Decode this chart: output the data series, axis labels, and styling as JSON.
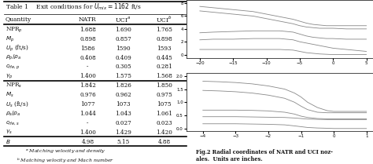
{
  "table_title": "Table 1    Exit conditions for $U_{mix} = 1162$ ft/s",
  "col_headers": [
    "Quantity",
    "NATR",
    "UCI$^a$",
    "UCI$^b$"
  ],
  "rows": [
    [
      "NPR$_p$",
      "1.688",
      "1.690",
      "1.765"
    ],
    [
      "$M_p$",
      "0.898",
      "0.857",
      "0.898"
    ],
    [
      "$U_p$ (ft/s)",
      "1586",
      "1590",
      "1593"
    ],
    [
      "$\\rho_p/\\rho_a$",
      "0.408",
      "0.409",
      "0.445"
    ],
    [
      "$c_{He,p}$",
      "-",
      "0.305",
      "0.281"
    ],
    [
      "$\\gamma_p$",
      "1.400",
      "1.575",
      "1.568"
    ],
    [
      "NPR$_s$",
      "1.842",
      "1.826",
      "1.850"
    ],
    [
      "$M_s$",
      "0.976",
      "0.962",
      "0.975"
    ],
    [
      "$U_s$ (ft/s)",
      "1077",
      "1073",
      "1075"
    ],
    [
      "$\\rho_s/\\rho_a$",
      "1.044",
      "1.043",
      "1.061"
    ],
    [
      "$c_{He,s}$",
      "-",
      "0.027",
      "0.023"
    ],
    [
      "$\\gamma_s$",
      "1.400",
      "1.429",
      "1.420"
    ],
    [
      "$B$",
      "4.98",
      "5.15",
      "4.88"
    ]
  ],
  "footnotes": [
    "$^a$ Matching velocity and density",
    "$^b$ Matching velocity and Mach number"
  ],
  "thick_after": [
    1,
    7,
    13
  ],
  "bg_color": "#ffffff",
  "text_color": "#111111",
  "plot1_xlabel_vals": [
    -20,
    -15,
    -10,
    -5,
    0,
    5
  ],
  "plot1_yticks": [
    0,
    2,
    4,
    6,
    8
  ],
  "plot1_xlim": [
    -22,
    6
  ],
  "plot1_ylim": [
    -0.5,
    8.5
  ],
  "plot2_xlabel_vals": [
    -4,
    -3,
    -2,
    -1,
    0,
    1
  ],
  "plot2_yticks": [
    0.0,
    0.5,
    1.0,
    1.5,
    2.0
  ],
  "plot2_xlim": [
    -4.5,
    1.2
  ],
  "plot2_ylim": [
    -0.1,
    2.1
  ],
  "line_color": "#888888",
  "fig_caption": "Fig.2 Radial coordinates of NATR and UCI noz-\nales.  Units are inches."
}
